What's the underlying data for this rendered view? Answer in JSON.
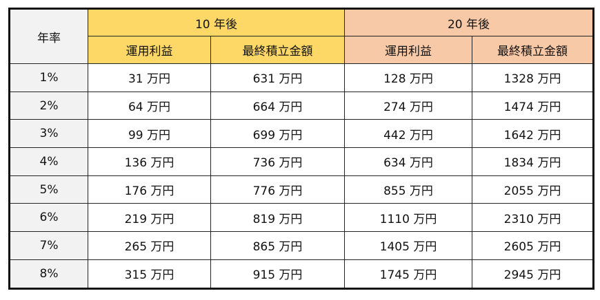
{
  "table": {
    "rate_header": "年率",
    "groups": [
      {
        "label": "10 年後",
        "color": "#fdd867",
        "columns": [
          "運用利益",
          "最終積立金額"
        ]
      },
      {
        "label": "20 年後",
        "color": "#f8c9a6",
        "columns": [
          "運用利益",
          "最終積立金額"
        ]
      }
    ],
    "rows": [
      [
        "1%",
        "31 万円",
        "631 万円",
        "128 万円",
        "1328 万円"
      ],
      [
        "2%",
        "64 万円",
        "664 万円",
        "274 万円",
        "1474 万円"
      ],
      [
        "3%",
        "99 万円",
        "699 万円",
        "442 万円",
        "1642 万円"
      ],
      [
        "4%",
        "136 万円",
        "736 万円",
        "634 万円",
        "1834 万円"
      ],
      [
        "5%",
        "176 万円",
        "776 万円",
        "855 万円",
        "2055 万円"
      ],
      [
        "6%",
        "219 万円",
        "819 万円",
        "1110 万円",
        "2310 万円"
      ],
      [
        "7%",
        "265 万円",
        "865 万円",
        "1405 万円",
        "2605 万円"
      ],
      [
        "8%",
        "315 万円",
        "915 万円",
        "1745 万円",
        "2945 万円"
      ]
    ]
  }
}
